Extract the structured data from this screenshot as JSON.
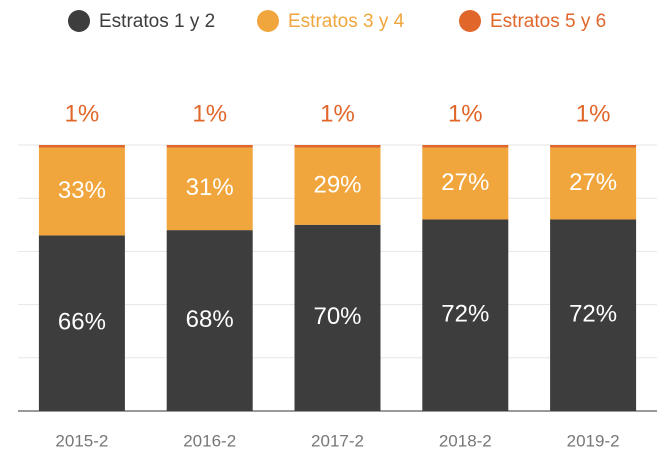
{
  "chart_data": {
    "type": "stacked_bar",
    "categories": [
      "2015-2",
      "2016-2",
      "2017-2",
      "2018-2",
      "2019-2"
    ],
    "series": [
      {
        "name": "Estratos 1 y 2",
        "color": "#3d3d3d",
        "values": [
          66,
          68,
          70,
          72,
          72
        ],
        "value_labels": [
          "66%",
          "68%",
          "70%",
          "72%",
          "72%"
        ]
      },
      {
        "name": "Estratos 3 y 4",
        "color": "#f0a63c",
        "values": [
          33,
          31,
          29,
          27,
          27
        ],
        "value_labels": [
          "33%",
          "31%",
          "29%",
          "27%",
          "27%"
        ]
      },
      {
        "name": "Estratos 5 y 6",
        "color": "#e0662a",
        "values": [
          1,
          1,
          1,
          1,
          1
        ],
        "value_labels": [
          "1%",
          "1%",
          "1%",
          "1%",
          "1%"
        ]
      }
    ],
    "ylim": [
      0,
      100
    ],
    "yticks": [
      0,
      20,
      40,
      60,
      80,
      100
    ],
    "grid": true
  }
}
